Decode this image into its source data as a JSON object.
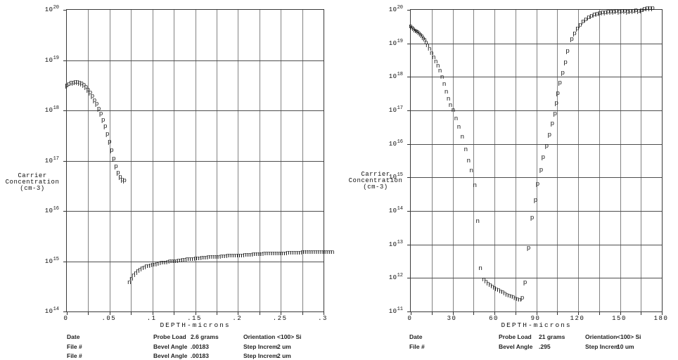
{
  "page": {
    "background": "#ffffff",
    "marker_color": "#141414",
    "gridline_color": "#828282",
    "axis_color": "#3a3a3a"
  },
  "chart_data": [
    {
      "type": "scatter",
      "id": "left-profile",
      "y_axis_title_lines": [
        "Carrier",
        "Concentration",
        "(cm-3)"
      ],
      "x_axis_title": "DEPTH-microns",
      "x_axis": {
        "min": 0,
        "max": 0.3,
        "grid_step": 0.025,
        "tick_step": 0.05,
        "tick_labels": [
          "0",
          ".05",
          ".1",
          ".15",
          ".2",
          ".25",
          ".3"
        ]
      },
      "y_axis": {
        "scale": "log",
        "min_exp": 14,
        "max_exp": 20,
        "grid": "on"
      },
      "series": [
        {
          "name": "p-type",
          "marker": "p",
          "x0": 0,
          "dx": 0.0025,
          "log10_conc": [
            18.49,
            18.52,
            18.54,
            18.55,
            18.56,
            18.56,
            18.55,
            18.53,
            18.5,
            18.46,
            18.41,
            18.35,
            18.28,
            18.2,
            18.12,
            18.03,
            17.93,
            17.81,
            17.68,
            17.53,
            17.37,
            17.2,
            17.03,
            16.88,
            16.76,
            16.67,
            16.62,
            16.6
          ]
        },
        {
          "name": "n-type",
          "marker": "n",
          "x0": 0.073,
          "dx": 0.0025,
          "log10_conc": [
            14.57,
            14.65,
            14.71,
            14.76,
            14.8,
            14.83,
            14.85,
            14.87,
            14.89,
            14.9,
            14.91,
            14.92,
            14.93,
            14.94,
            14.95,
            14.96,
            14.97,
            14.97,
            14.98,
            14.99,
            14.99,
            15.0,
            15.0,
            15.01,
            15.01,
            15.02,
            15.02,
            15.03,
            15.03,
            15.04,
            15.04,
            15.05,
            15.05,
            15.05,
            15.06,
            15.06,
            15.06,
            15.07,
            15.07,
            15.07,
            15.08,
            15.08,
            15.08,
            15.09,
            15.09,
            15.09,
            15.1,
            15.1,
            15.1,
            15.1,
            15.11,
            15.11,
            15.11,
            15.11,
            15.12,
            15.12,
            15.12,
            15.12,
            15.13,
            15.13,
            15.13,
            15.13,
            15.13,
            15.14,
            15.14,
            15.14,
            15.14,
            15.14,
            15.15,
            15.15,
            15.15,
            15.15,
            15.15,
            15.15,
            15.16,
            15.16,
            15.16,
            15.16,
            15.16,
            15.16,
            15.16,
            15.17,
            15.17,
            15.17,
            15.17,
            15.17,
            15.17,
            15.17,
            15.17,
            15.18,
            15.18,
            15.18,
            15.18,
            15.18,
            15.18,
            15.18
          ]
        }
      ],
      "footer": {
        "rows": [
          {
            "c1": "Date",
            "c2_label": "Probe Load",
            "c2_value": "2.6 grams",
            "c3_label": "Orientation",
            "c3_value": "<100> Si"
          },
          {
            "c1": "File #",
            "c2_label": "Bevel Angle",
            "c2_value": ".00183",
            "c3_label": "Step Increm",
            "c3_value": "2 um"
          },
          {
            "c1": "File #",
            "c2_label": "Bevel Angle",
            "c2_value": ".00183",
            "c3_label": "Step Increm",
            "c3_value": "2 um"
          }
        ]
      }
    },
    {
      "type": "scatter",
      "id": "right-profile",
      "y_axis_title_lines": [
        "Carrier",
        "Concentration",
        "(cm-3)"
      ],
      "x_axis_title": "DEPTH-microns",
      "x_axis": {
        "min": 0,
        "max": 180,
        "grid_step": 15,
        "tick_step": 30,
        "tick_labels": [
          "0",
          "30",
          "60",
          "90",
          "120",
          "150",
          "180"
        ]
      },
      "y_axis": {
        "scale": "log",
        "min_exp": 11,
        "max_exp": 20,
        "grid": "on"
      },
      "series": [
        {
          "name": "n-type",
          "marker": "n",
          "points": [
            [
              0,
              19.5
            ],
            [
              1,
              19.46
            ],
            [
              2,
              19.42
            ],
            [
              3,
              19.38
            ],
            [
              4,
              19.35
            ],
            [
              5,
              19.32
            ],
            [
              6,
              19.28
            ],
            [
              7,
              19.24
            ],
            [
              8,
              19.2
            ],
            [
              9,
              19.15
            ],
            [
              10,
              19.1
            ],
            [
              11,
              19.02
            ],
            [
              12,
              18.93
            ],
            [
              13.5,
              18.83
            ],
            [
              15,
              18.7
            ],
            [
              16.5,
              18.58
            ],
            [
              18,
              18.45
            ],
            [
              19.5,
              18.32
            ],
            [
              21,
              18.18
            ],
            [
              22.5,
              17.99
            ],
            [
              24,
              17.78
            ],
            [
              25.5,
              17.55
            ],
            [
              27,
              17.34
            ],
            [
              28.5,
              17.15
            ],
            [
              30.5,
              17.0
            ],
            [
              32.5,
              16.75
            ],
            [
              34.5,
              16.5
            ],
            [
              37,
              16.2
            ],
            [
              39.5,
              15.83
            ],
            [
              41.5,
              15.48
            ],
            [
              43.5,
              15.19
            ],
            [
              46,
              14.75
            ],
            [
              48,
              13.68
            ],
            [
              50,
              12.28
            ],
            [
              52.5,
              11.94
            ],
            [
              54,
              11.88
            ],
            [
              55.5,
              11.82
            ],
            [
              57,
              11.77
            ],
            [
              58.5,
              11.73
            ],
            [
              60,
              11.69
            ],
            [
              61.5,
              11.65
            ],
            [
              63,
              11.62
            ],
            [
              64.5,
              11.59
            ],
            [
              66,
              11.56
            ],
            [
              67.5,
              11.52
            ],
            [
              69,
              11.49
            ],
            [
              70.5,
              11.46
            ],
            [
              72,
              11.44
            ],
            [
              73.5,
              11.41
            ],
            [
              75,
              11.38
            ],
            [
              76.5,
              11.35
            ],
            [
              78,
              11.33
            ]
          ]
        },
        {
          "name": "p-type",
          "marker": "p",
          "points": [
            [
              80,
              11.4
            ],
            [
              82,
              11.86
            ],
            [
              84.5,
              12.88
            ],
            [
              87,
              13.78
            ],
            [
              89.5,
              14.31
            ],
            [
              91,
              14.79
            ],
            [
              93.5,
              15.21
            ],
            [
              95,
              15.6
            ],
            [
              97.5,
              15.94
            ],
            [
              99.5,
              16.27
            ],
            [
              101.5,
              16.61
            ],
            [
              103.5,
              16.9
            ],
            [
              104.5,
              17.22
            ],
            [
              105.5,
              17.51
            ],
            [
              107,
              17.82
            ],
            [
              109,
              18.12
            ],
            [
              111,
              18.43
            ],
            [
              112.5,
              18.77
            ],
            [
              115.5,
              19.12
            ],
            [
              117.5,
              19.29
            ],
            [
              119.5,
              19.43
            ],
            [
              121.5,
              19.54
            ],
            [
              123.5,
              19.64
            ],
            [
              125.5,
              19.71
            ],
            [
              127.5,
              19.77
            ],
            [
              129.5,
              19.81
            ],
            [
              131.5,
              19.85
            ],
            [
              133.5,
              19.87
            ],
            [
              135.5,
              19.9
            ],
            [
              137.5,
              19.92
            ],
            [
              139.5,
              19.92
            ],
            [
              141.5,
              19.94
            ],
            [
              143.5,
              19.94
            ],
            [
              145.5,
              19.94
            ],
            [
              147.5,
              19.96
            ],
            [
              149.5,
              19.94
            ],
            [
              151.5,
              19.96
            ],
            [
              153.5,
              19.96
            ],
            [
              155.5,
              19.94
            ],
            [
              157.5,
              19.96
            ],
            [
              159.5,
              19.96
            ],
            [
              161.5,
              19.98
            ],
            [
              163.5,
              19.96
            ],
            [
              165.5,
              19.98
            ],
            [
              167.5,
              20.02
            ],
            [
              169.5,
              20.04
            ],
            [
              171.5,
              20.04
            ],
            [
              173.5,
              20.04
            ]
          ]
        }
      ],
      "footer": {
        "rows": [
          {
            "c1": "Date",
            "c2_label": "Probe Load",
            "c2_value": "21 grams",
            "c3_label": "Orientation",
            "c3_value": "<100> Si"
          },
          {
            "c1": "File #",
            "c2_label": "Bevel Angle",
            "c2_value": ".295",
            "c3_label": "Step Increm",
            "c3_value": "10 um"
          }
        ]
      }
    }
  ]
}
